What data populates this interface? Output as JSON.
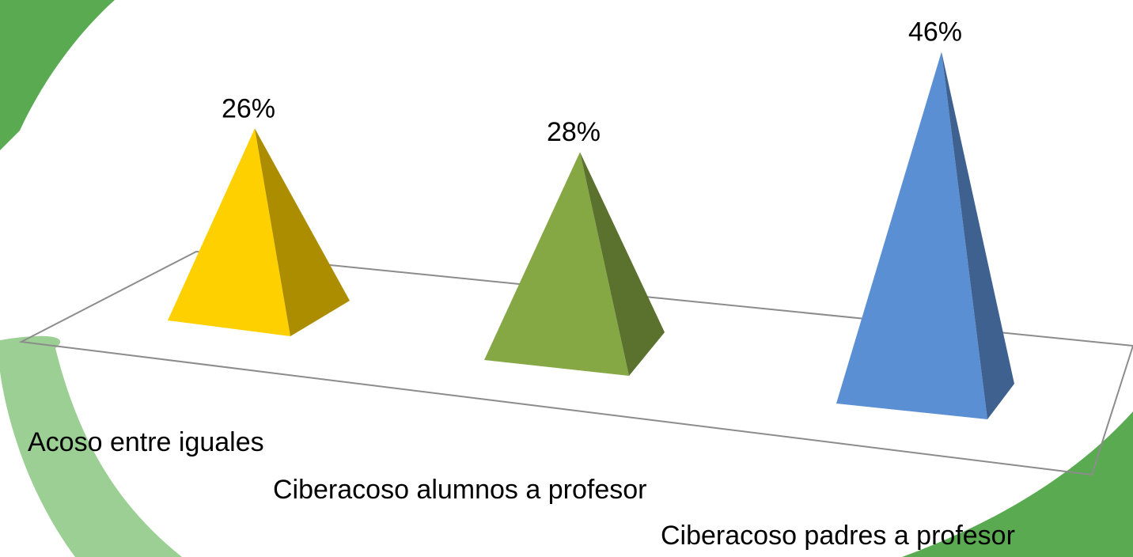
{
  "chart_data": {
    "type": "pyramid3d",
    "categories": [
      "Acoso entre iguales",
      "Ciberacoso alumnos a profesor",
      "Ciberacoso padres a profesor"
    ],
    "values": [
      26,
      28,
      46
    ],
    "value_labels": [
      "26%",
      "28%",
      "46%"
    ],
    "colors": [
      "#ffd000",
      "#86a844",
      "#5b8fd4"
    ]
  }
}
